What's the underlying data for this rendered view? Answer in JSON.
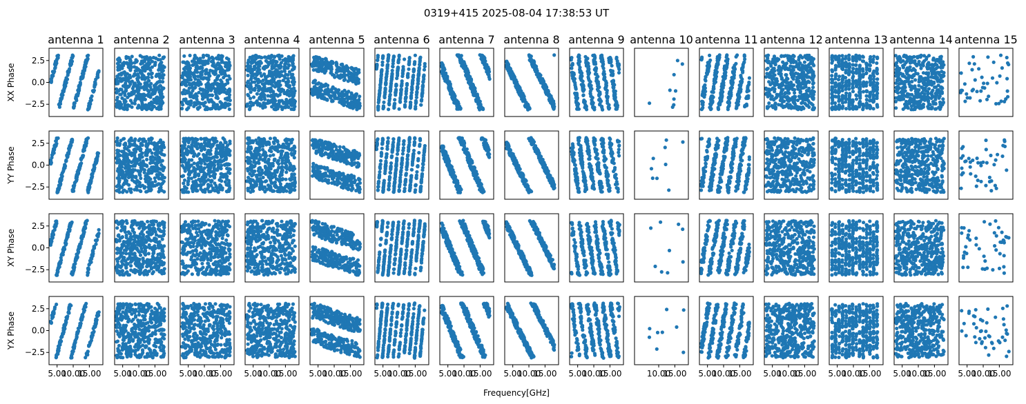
{
  "suptitle": "0319+415 2025-08-04 17:38:53 UT",
  "xlabel": "Frequency[GHz]",
  "colors": {
    "points": "#1f77b4",
    "frame": "#000000",
    "background": "#ffffff"
  },
  "chart_data": {
    "type": "scatter",
    "grid": false,
    "antennas": [
      "antenna 1",
      "antenna 2",
      "antenna 3",
      "antenna 4",
      "antenna 5",
      "antenna 6",
      "antenna 7",
      "antenna 8",
      "antenna 9",
      "antenna 10",
      "antenna 11",
      "antenna 12",
      "antenna 13",
      "antenna 14",
      "antenna 15"
    ],
    "polarizations": [
      "XX Phase",
      "YY Phase",
      "XY Phase",
      "YX Phase"
    ],
    "xlim": [
      2.5,
      19.2
    ],
    "ylim": [
      -3.9,
      3.9
    ],
    "y_tick_values": [
      -2.5,
      0.0,
      2.5
    ],
    "y_tick_labels_row0": [
      "−2.5",
      "0.0",
      "2.5"
    ],
    "y_tick_labels": [
      "−2.5",
      "0.0",
      "2.5"
    ],
    "row_ytick_labels": [
      [
        "−2.5",
        "0.0",
        "2.5"
      ],
      [
        "−2.5",
        "0.0",
        "2.5"
      ],
      [
        "−2.5",
        "0.0",
        "2.5"
      ],
      [
        "−2.5",
        "0.0",
        "2.5"
      ]
    ],
    "x_tick_values": [
      5,
      10,
      15
    ],
    "x_tick_labels": [
      "5.00",
      "10.00",
      "15.00"
    ],
    "x_tick_values_antenna10": [
      10,
      15
    ],
    "x_tick_labels_antenna10": [
      "10.00",
      "15.00"
    ],
    "row_ytick_values": [
      [
        -2.5,
        0.0,
        2.5
      ],
      [
        -2.5,
        0.0,
        2.5
      ],
      [
        -2.5,
        0.0,
        2.5
      ],
      [
        -2.5,
        0.0,
        2.5
      ]
    ],
    "yy_tick_values": [
      -2.5,
      0.0,
      2.5
    ],
    "phase_range": [
      -3.1416,
      3.1416
    ],
    "patterns": {
      "antenna 1": {
        "kind": "wrap",
        "slope": 1.35,
        "n": 220,
        "noise": 0.35
      },
      "antenna 2": {
        "kind": "random",
        "n": 420
      },
      "antenna 3": {
        "kind": "random",
        "n": 420
      },
      "antenna 4": {
        "kind": "random",
        "n": 420
      },
      "antenna 5": {
        "kind": "bands",
        "n": 380
      },
      "antenna 6": {
        "kind": "wrap",
        "slope": 3.8,
        "n": 360,
        "noise": 0.25
      },
      "antenna 7": {
        "kind": "wrap",
        "slope": -0.9,
        "n": 300,
        "noise": 0.6
      },
      "antenna 8": {
        "kind": "wrap",
        "slope": -0.75,
        "n": 300,
        "noise": 0.45
      },
      "antenna 9": {
        "kind": "wrap",
        "slope": -2.6,
        "n": 340,
        "noise": 0.9
      },
      "antenna 10": {
        "kind": "sparse",
        "n": 9
      },
      "antenna 11": {
        "kind": "wrap",
        "slope": 2.3,
        "n": 340,
        "noise": 0.9
      },
      "antenna 12": {
        "kind": "random",
        "n": 420
      },
      "antenna 13": {
        "kind": "stripes",
        "n": 420
      },
      "antenna 14": {
        "kind": "random",
        "n": 420
      },
      "antenna 15": {
        "kind": "random",
        "n": 45
      }
    }
  }
}
